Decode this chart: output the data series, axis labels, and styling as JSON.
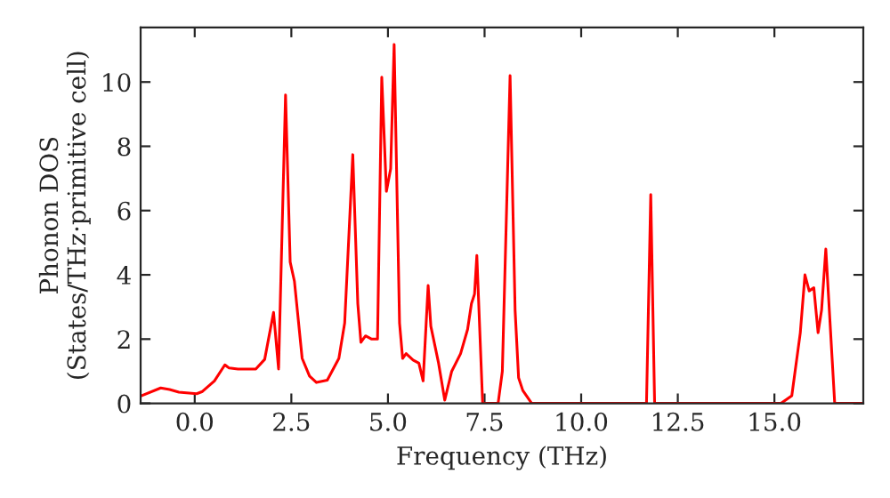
{
  "chart_data": {
    "type": "line",
    "xlabel": "Frequency (THz)",
    "ylabel": "Phonon DOS\n(States/THz·primitive cell)",
    "x": [
      -1.37,
      -0.88,
      -0.65,
      -0.41,
      0.05,
      0.2,
      0.51,
      0.78,
      0.89,
      1.12,
      1.58,
      1.81,
      2.04,
      2.17,
      2.35,
      2.47,
      2.58,
      2.78,
      2.97,
      3.15,
      3.43,
      3.73,
      3.88,
      4.09,
      4.22,
      4.3,
      4.42,
      4.58,
      4.73,
      4.84,
      4.96,
      5.07,
      5.16,
      5.3,
      5.38,
      5.47,
      5.65,
      5.8,
      5.91,
      6.04,
      6.11,
      6.31,
      6.47,
      6.65,
      6.88,
      7.06,
      7.16,
      7.24,
      7.3,
      7.45,
      7.85,
      7.96,
      8.16,
      8.29,
      8.38,
      8.49,
      8.72,
      11.69,
      11.8,
      11.9,
      15.17,
      15.45,
      15.67,
      15.79,
      15.9,
      16.02,
      16.13,
      16.22,
      16.33,
      16.56,
      17.3
    ],
    "series": [
      {
        "color": "#ff0000",
        "values": [
          0.24,
          0.48,
          0.43,
          0.35,
          0.3,
          0.37,
          0.7,
          1.2,
          1.1,
          1.07,
          1.07,
          1.37,
          2.83,
          1.07,
          9.6,
          4.4,
          3.8,
          1.4,
          0.85,
          0.65,
          0.72,
          1.4,
          2.5,
          7.74,
          3.1,
          1.9,
          2.1,
          2.0,
          2.0,
          10.15,
          6.6,
          7.3,
          11.17,
          2.5,
          1.4,
          1.55,
          1.35,
          1.25,
          0.7,
          3.67,
          2.4,
          1.25,
          0.1,
          1.0,
          1.55,
          2.3,
          3.1,
          3.4,
          4.6,
          0,
          0,
          1.0,
          10.2,
          2.9,
          0.8,
          0.4,
          0,
          0,
          6.5,
          0,
          0,
          0.24,
          2.2,
          4.0,
          3.5,
          3.6,
          2.2,
          2.9,
          4.8,
          0,
          0
        ]
      }
    ],
    "xlim": [
      -1.4,
      17.3
    ],
    "ylim": [
      0,
      11.7
    ],
    "xticks": [
      {
        "value": 0,
        "label": "0.0"
      },
      {
        "value": 2.5,
        "label": "2.5"
      },
      {
        "value": 5,
        "label": "5.0"
      },
      {
        "value": 7.5,
        "label": "7.5"
      },
      {
        "value": 10,
        "label": "10.0"
      },
      {
        "value": 12.5,
        "label": "12.5"
      },
      {
        "value": 15,
        "label": "15.0"
      }
    ],
    "yticks": [
      0,
      2,
      4,
      6,
      8,
      10
    ],
    "grid": false,
    "legend": false
  }
}
